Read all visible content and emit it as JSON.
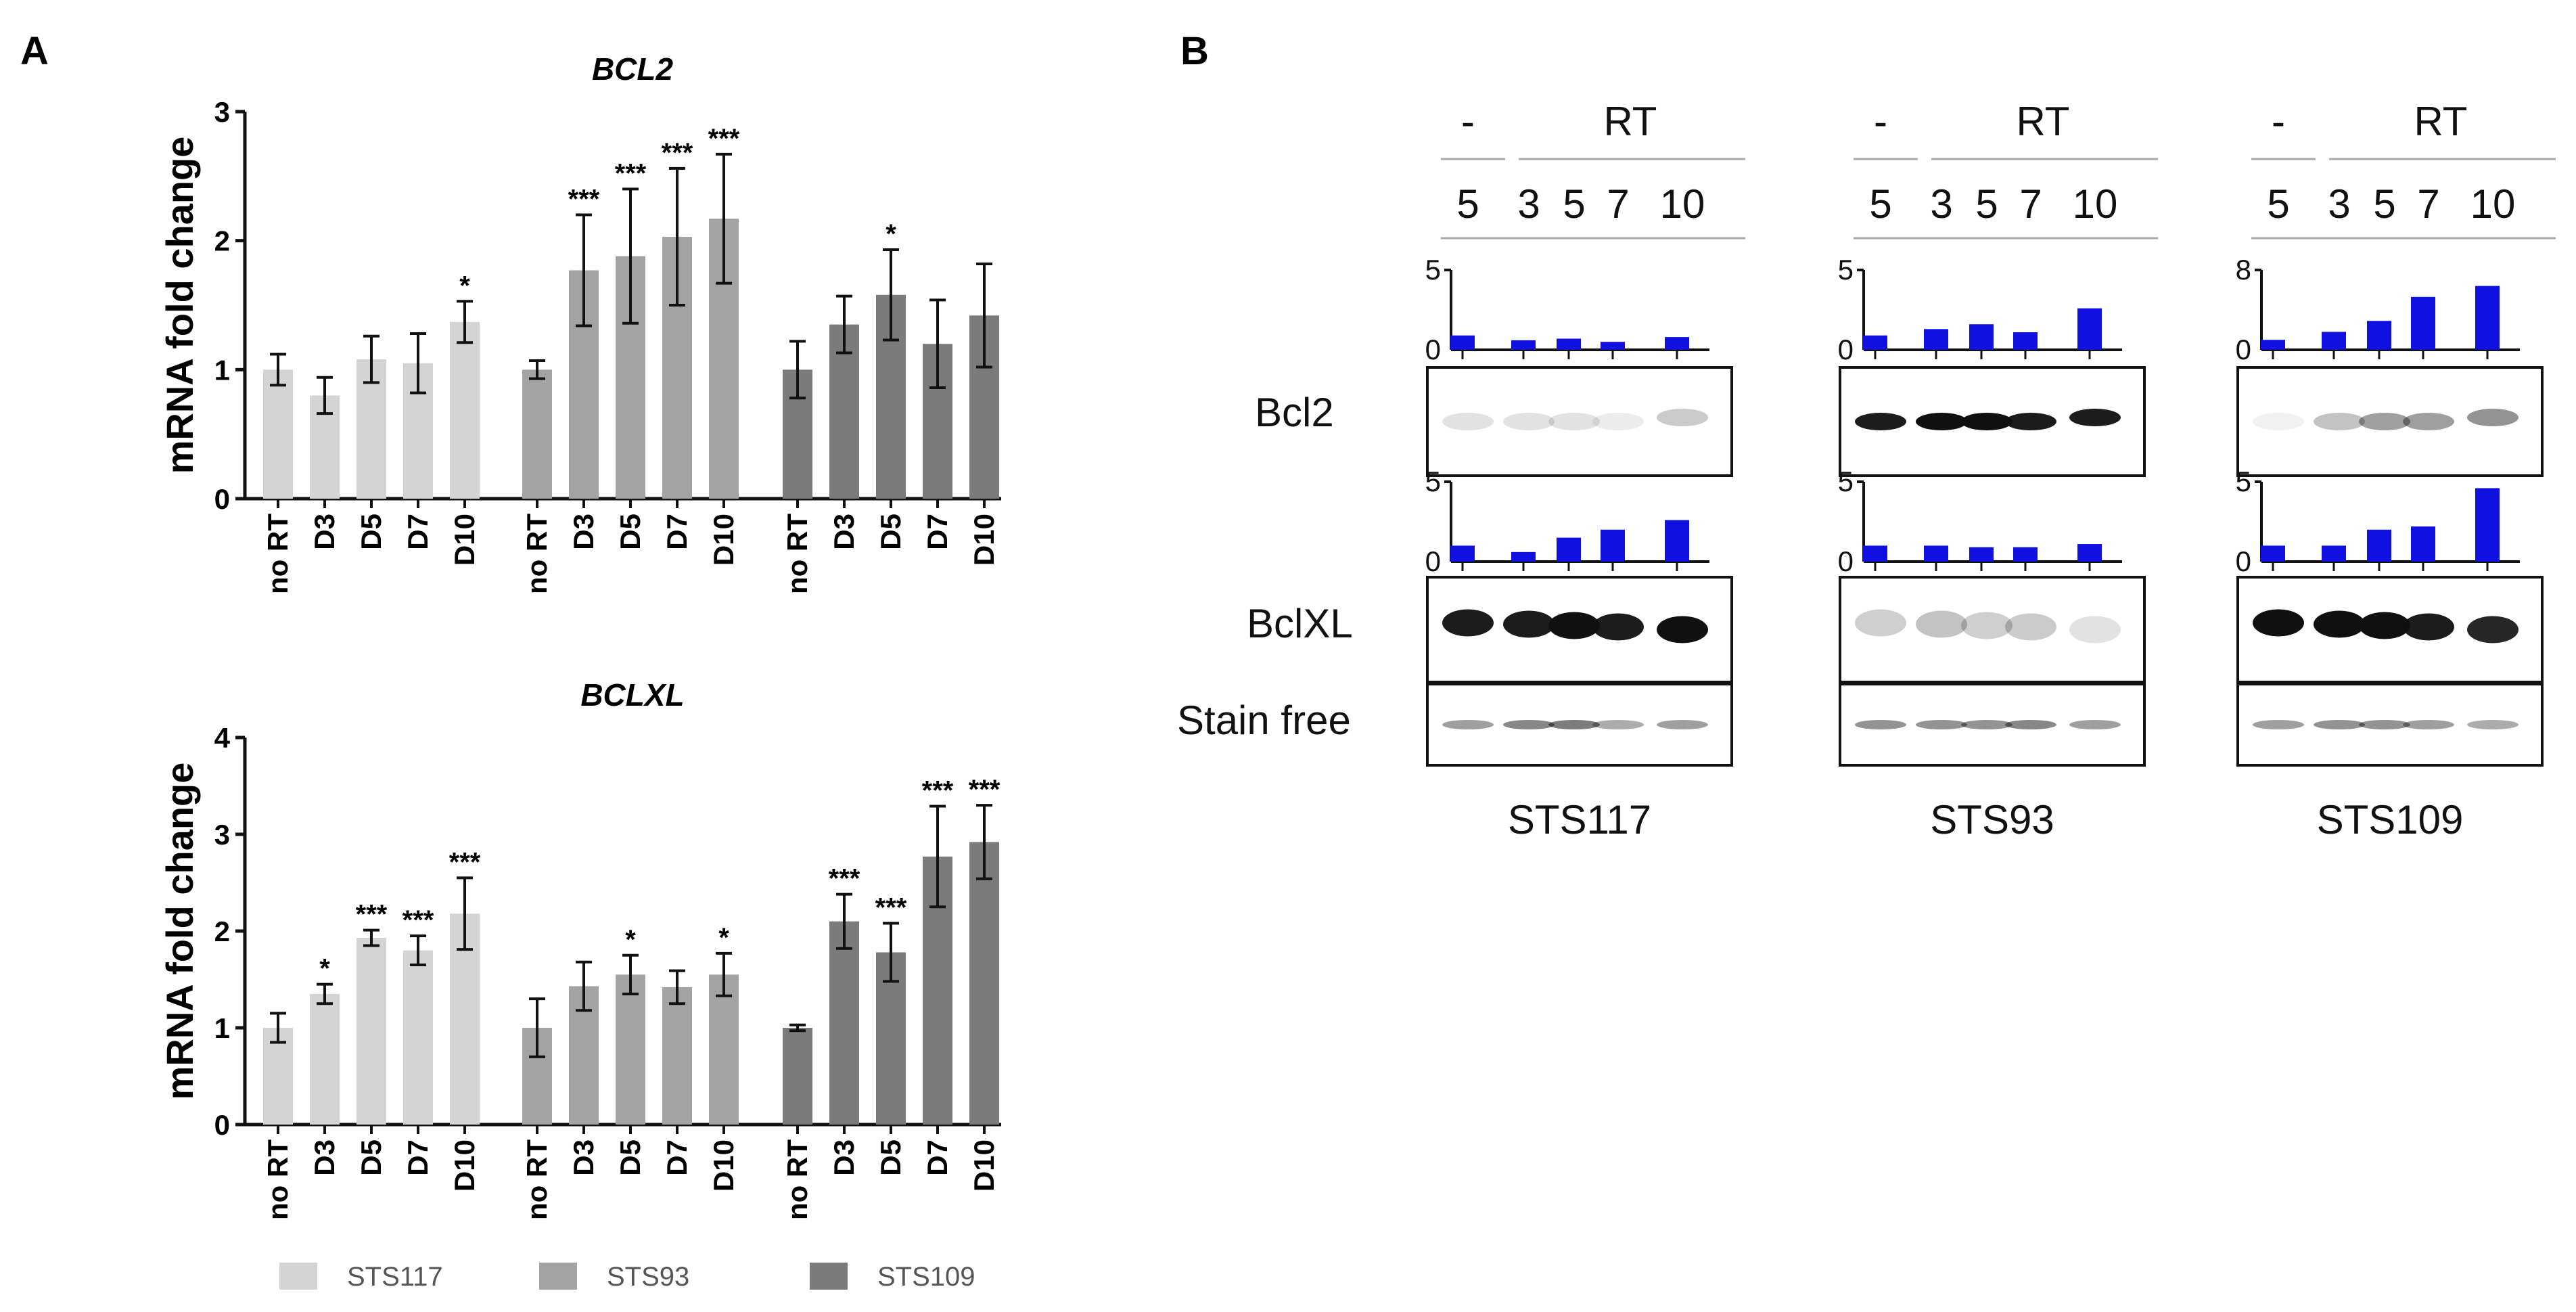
{
  "panels": {
    "a": "A",
    "b": "B"
  },
  "chart_data": [
    {
      "type": "bar",
      "title": "BCL2",
      "ylabel": "mRNA fold change",
      "xlabel": "",
      "ylim": [
        0,
        3
      ],
      "yticks": [
        "0",
        "1",
        "2",
        "3"
      ],
      "groups": [
        {
          "name": "STS117",
          "categories": [
            "no RT",
            "D3",
            "D5",
            "D7",
            "D10"
          ],
          "values": [
            1.0,
            0.8,
            1.08,
            1.05,
            1.37
          ],
          "errors": [
            0.12,
            0.14,
            0.18,
            0.23,
            0.16
          ],
          "sig": [
            "",
            "",
            "",
            "",
            "*"
          ]
        },
        {
          "name": "STS93",
          "categories": [
            "no RT",
            "D3",
            "D5",
            "D7",
            "D10"
          ],
          "values": [
            1.0,
            1.77,
            1.88,
            2.03,
            2.17
          ],
          "errors": [
            0.07,
            0.43,
            0.52,
            0.53,
            0.5
          ],
          "sig": [
            "",
            "***",
            "***",
            "***",
            "***"
          ]
        },
        {
          "name": "STS109",
          "categories": [
            "no RT",
            "D3",
            "D5",
            "D7",
            "D10"
          ],
          "values": [
            1.0,
            1.35,
            1.58,
            1.2,
            1.42
          ],
          "errors": [
            0.22,
            0.22,
            0.35,
            0.34,
            0.4
          ],
          "sig": [
            "",
            "",
            "*",
            "",
            ""
          ]
        }
      ]
    },
    {
      "type": "bar",
      "title": "BCLXL",
      "ylabel": "mRNA fold change",
      "xlabel": "",
      "ylim": [
        0,
        4
      ],
      "yticks": [
        "0",
        "1",
        "2",
        "3",
        "4"
      ],
      "groups": [
        {
          "name": "STS117",
          "categories": [
            "no RT",
            "D3",
            "D5",
            "D7",
            "D10"
          ],
          "values": [
            1.0,
            1.35,
            1.93,
            1.8,
            2.18
          ],
          "errors": [
            0.15,
            0.1,
            0.08,
            0.15,
            0.37
          ],
          "sig": [
            "",
            "*",
            "***",
            "***",
            "***"
          ]
        },
        {
          "name": "STS93",
          "categories": [
            "no RT",
            "D3",
            "D5",
            "D7",
            "D10"
          ],
          "values": [
            1.0,
            1.43,
            1.55,
            1.42,
            1.55
          ],
          "errors": [
            0.3,
            0.25,
            0.2,
            0.17,
            0.22
          ],
          "sig": [
            "",
            "",
            "*",
            "",
            "*"
          ]
        },
        {
          "name": "STS109",
          "categories": [
            "no RT",
            "D3",
            "D5",
            "D7",
            "D10"
          ],
          "values": [
            1.0,
            2.1,
            1.78,
            2.77,
            2.92
          ],
          "errors": [
            0.03,
            0.28,
            0.3,
            0.52,
            0.38
          ],
          "sig": [
            "",
            "***",
            "***",
            "***",
            "***"
          ]
        }
      ]
    }
  ],
  "legend": [
    {
      "label": "STS117",
      "color": "#d4d4d4"
    },
    {
      "label": "STS93",
      "color": "#a3a3a3"
    },
    {
      "label": "STS109",
      "color": "#7b7b7b"
    }
  ],
  "western": {
    "header": {
      "minus": "-",
      "rt": "RT",
      "lanes": [
        "5",
        "3",
        "5",
        "7",
        "10"
      ]
    },
    "row_labels": [
      "Bcl2",
      "BclXL",
      "Stain free"
    ],
    "bar_color": "#1010e0",
    "samples": [
      {
        "name": "STS117",
        "bcl2_ymax": "5",
        "bcl2": [
          0.9,
          0.6,
          0.7,
          0.5,
          0.8
        ],
        "bclxl_ymax": "5",
        "bclxl": [
          1.0,
          0.6,
          1.5,
          2.0,
          2.6
        ]
      },
      {
        "name": "STS93",
        "bcl2_ymax": "5",
        "bcl2": [
          0.9,
          1.3,
          1.6,
          1.1,
          2.6
        ],
        "bclxl_ymax": "5",
        "bclxl": [
          1.0,
          1.0,
          0.9,
          0.9,
          1.1
        ]
      },
      {
        "name": "STS109",
        "bcl2_ymax": "8",
        "bcl2": [
          1.0,
          1.8,
          2.9,
          5.3,
          6.4
        ],
        "bclxl_ymax": "5",
        "bclxl": [
          1.0,
          1.0,
          2.0,
          2.2,
          4.6
        ]
      }
    ],
    "zero_label": "0"
  }
}
